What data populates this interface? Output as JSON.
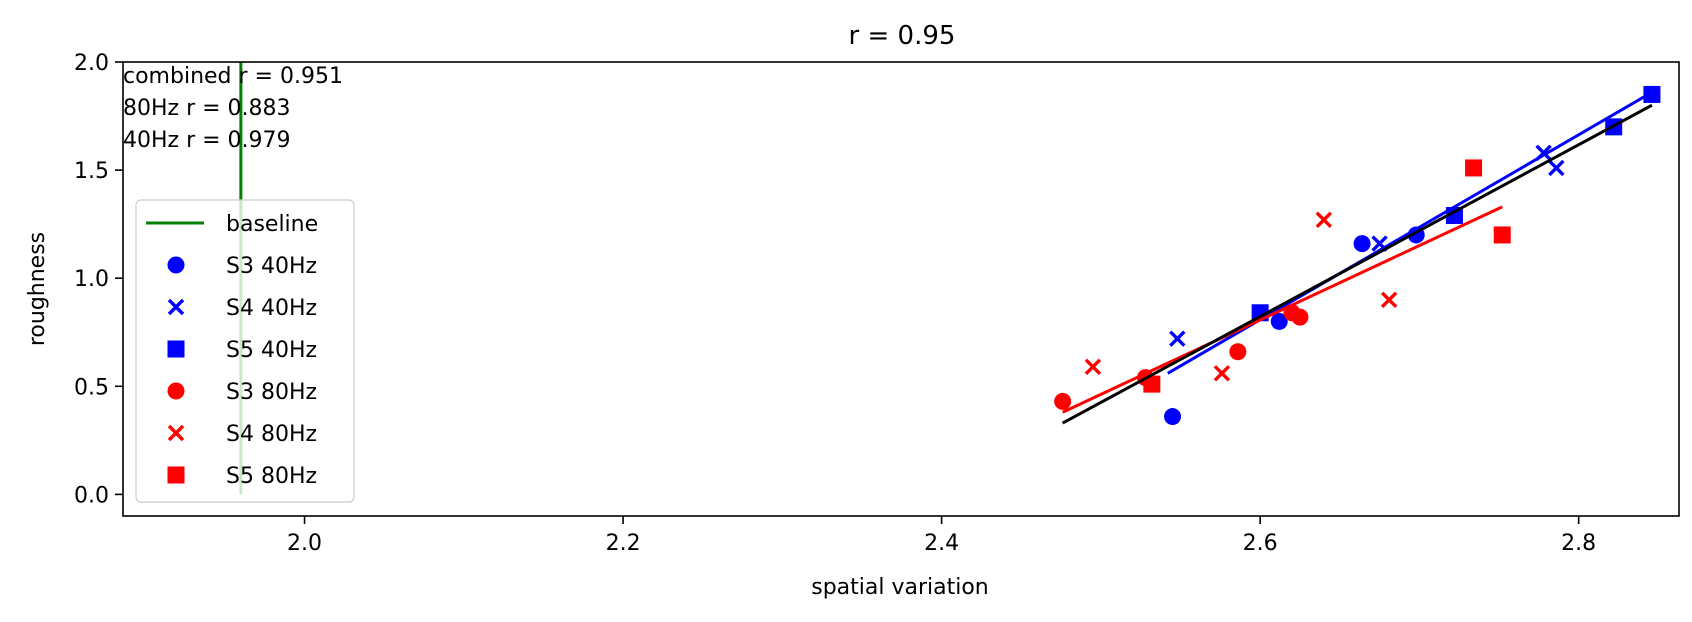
{
  "chart_data": {
    "type": "scatter",
    "title": "r = 0.95",
    "xlabel": "spatial variation",
    "ylabel": "roughness",
    "xlim": [
      1.886,
      2.863
    ],
    "ylim": [
      -0.1,
      2.0
    ],
    "xticks": [
      "2.0",
      "2.2",
      "2.4",
      "2.6",
      "2.8"
    ],
    "xtick_values": [
      2.0,
      2.2,
      2.4,
      2.6,
      2.8
    ],
    "yticks": [
      "0.0",
      "0.5",
      "1.0",
      "1.5",
      "2.0"
    ],
    "ytick_values": [
      0.0,
      0.5,
      1.0,
      1.5,
      2.0
    ],
    "annotations": [
      "combined r = 0.951",
      "80Hz r = 0.883",
      "40Hz r = 0.979"
    ],
    "legend_position": "center-left",
    "baseline": {
      "name": "baseline",
      "x": 1.96,
      "y": [
        0.0,
        2.0
      ],
      "color": "#008000"
    },
    "series": [
      {
        "name": "S3 40Hz",
        "marker": "circle",
        "color": "#0000ff",
        "points": [
          [
            2.545,
            0.36
          ],
          [
            2.612,
            0.8
          ],
          [
            2.664,
            1.16
          ],
          [
            2.698,
            1.2
          ]
        ]
      },
      {
        "name": "S4 40Hz",
        "marker": "x",
        "color": "#0000ff",
        "points": [
          [
            2.548,
            0.72
          ],
          [
            2.675,
            1.16
          ],
          [
            2.778,
            1.58
          ],
          [
            2.786,
            1.51
          ]
        ]
      },
      {
        "name": "S5 40Hz",
        "marker": "square",
        "color": "#0000ff",
        "points": [
          [
            2.6,
            0.84
          ],
          [
            2.722,
            1.29
          ],
          [
            2.822,
            1.7
          ],
          [
            2.846,
            1.85
          ]
        ]
      },
      {
        "name": "S3 80Hz",
        "marker": "circle",
        "color": "#ff0000",
        "points": [
          [
            2.476,
            0.43
          ],
          [
            2.528,
            0.54
          ],
          [
            2.586,
            0.66
          ],
          [
            2.62,
            0.84
          ],
          [
            2.625,
            0.82
          ]
        ]
      },
      {
        "name": "S4 80Hz",
        "marker": "x",
        "color": "#ff0000",
        "points": [
          [
            2.495,
            0.59
          ],
          [
            2.576,
            0.56
          ],
          [
            2.64,
            1.27
          ],
          [
            2.681,
            0.9
          ]
        ]
      },
      {
        "name": "S5 80Hz",
        "marker": "square",
        "color": "#ff0000",
        "points": [
          [
            2.532,
            0.51
          ],
          [
            2.734,
            1.51
          ],
          [
            2.752,
            1.2
          ]
        ]
      }
    ],
    "fit_lines": [
      {
        "color": "#0000ff",
        "x": [
          2.542,
          2.846
        ],
        "y": [
          0.56,
          1.86
        ]
      },
      {
        "color": "#ff0000",
        "x": [
          2.476,
          2.752
        ],
        "y": [
          0.38,
          1.33
        ]
      },
      {
        "color": "#000000",
        "x": [
          2.476,
          2.846
        ],
        "y": [
          0.33,
          1.8
        ]
      }
    ]
  }
}
